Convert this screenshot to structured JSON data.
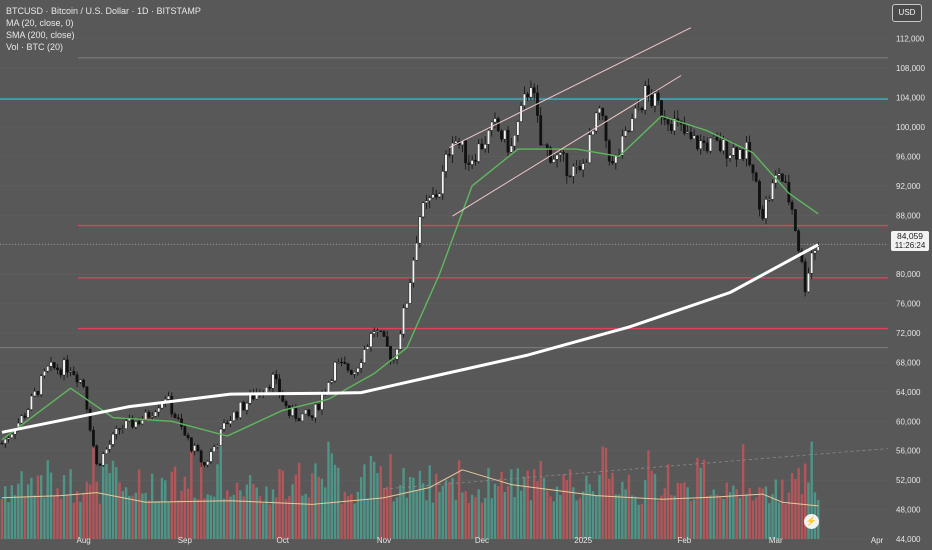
{
  "legend": {
    "symbol": "BTCUSD · Bitcoin / U.S. Dollar · 1D · BITSTAMP",
    "ma": "MA (20, close, 0)",
    "sma": "SMA (200, close)",
    "vol": "Vol · BTC (20)"
  },
  "currency_button": "USD",
  "last_price": {
    "value": "84,059",
    "countdown": "11:26:24"
  },
  "colors": {
    "background": "#585858",
    "sma200": "#ffffff",
    "ma20": "#5fb85f",
    "vol_ma": "#e8c99a",
    "vol_up": "#4e9588",
    "vol_down": "#b3565a",
    "resistance": "#e0405a",
    "cyan_level": "#39b5cc",
    "channel": "#f0c8c8"
  },
  "chart_data": {
    "type": "candlestick",
    "title": "BTCUSD · Bitcoin / U.S. Dollar · 1D · BITSTAMP",
    "y_axis": {
      "range": [
        44000,
        114000
      ],
      "ticks": [
        "112,000",
        "108,000",
        "104,000",
        "100,000",
        "96,000",
        "92,000",
        "88,000",
        "84,000",
        "80,000",
        "76,000",
        "72,000",
        "68,000",
        "64,000",
        "60,000",
        "56,000",
        "52,000",
        "48,000",
        "44,000"
      ]
    },
    "x_axis": {
      "range": [
        "2024-07-07",
        "2025-04-01"
      ],
      "ticks": [
        {
          "label": "Aug",
          "date": "2024-08-01"
        },
        {
          "label": "Sep",
          "date": "2024-09-01"
        },
        {
          "label": "Oct",
          "date": "2024-10-01"
        },
        {
          "label": "Nov",
          "date": "2024-11-01"
        },
        {
          "label": "Dec",
          "date": "2024-12-01"
        },
        {
          "label": "2025",
          "date": "2025-01-01"
        },
        {
          "label": "Feb",
          "date": "2025-02-01"
        },
        {
          "label": "Mar",
          "date": "2025-03-01"
        },
        {
          "label": "Apr",
          "date": "2025-04-01"
        }
      ]
    },
    "close_path": [
      [
        "2024-07-07",
        57000
      ],
      [
        "2024-07-14",
        61000
      ],
      [
        "2024-07-21",
        67000
      ],
      [
        "2024-07-28",
        67500
      ],
      [
        "2024-08-01",
        65000
      ],
      [
        "2024-08-05",
        54000
      ],
      [
        "2024-08-12",
        59000
      ],
      [
        "2024-08-20",
        60500
      ],
      [
        "2024-08-26",
        63500
      ],
      [
        "2024-09-01",
        58000
      ],
      [
        "2024-09-07",
        54000
      ],
      [
        "2024-09-14",
        60000
      ],
      [
        "2024-09-22",
        63500
      ],
      [
        "2024-09-28",
        65800
      ],
      [
        "2024-10-03",
        61000
      ],
      [
        "2024-10-10",
        60500
      ],
      [
        "2024-10-17",
        67500
      ],
      [
        "2024-10-23",
        67000
      ],
      [
        "2024-10-29",
        72500
      ],
      [
        "2024-11-04",
        68500
      ],
      [
        "2024-11-08",
        76500
      ],
      [
        "2024-11-12",
        88000
      ],
      [
        "2024-11-18",
        91500
      ],
      [
        "2024-11-22",
        99000
      ],
      [
        "2024-11-27",
        95500
      ],
      [
        "2024-12-05",
        100000
      ],
      [
        "2024-12-10",
        97000
      ],
      [
        "2024-12-16",
        106500
      ],
      [
        "2024-12-19",
        97500
      ],
      [
        "2024-12-26",
        95000
      ],
      [
        "2024-12-31",
        93500
      ],
      [
        "2025-01-06",
        102000
      ],
      [
        "2025-01-10",
        94500
      ],
      [
        "2025-01-20",
        104500
      ],
      [
        "2025-01-27",
        101500
      ],
      [
        "2025-02-03",
        98000
      ],
      [
        "2025-02-10",
        97500
      ],
      [
        "2025-02-20",
        96500
      ],
      [
        "2025-02-25",
        88500
      ],
      [
        "2025-03-02",
        94000
      ],
      [
        "2025-03-06",
        89000
      ],
      [
        "2025-03-10",
        78500
      ],
      [
        "2025-03-12",
        83000
      ],
      [
        "2025-03-14",
        84059
      ]
    ],
    "ma20_path": [
      [
        "2024-07-07",
        57500
      ],
      [
        "2024-07-28",
        64500
      ],
      [
        "2024-08-10",
        60500
      ],
      [
        "2024-08-28",
        60000
      ],
      [
        "2024-09-14",
        58000
      ],
      [
        "2024-10-01",
        61500
      ],
      [
        "2024-10-15",
        63000
      ],
      [
        "2024-10-29",
        66500
      ],
      [
        "2024-11-08",
        70000
      ],
      [
        "2024-11-18",
        80000
      ],
      [
        "2024-11-28",
        92000
      ],
      [
        "2024-12-12",
        97000
      ],
      [
        "2024-12-30",
        97000
      ],
      [
        "2025-01-12",
        96000
      ],
      [
        "2025-01-25",
        101500
      ],
      [
        "2025-02-08",
        99500
      ],
      [
        "2025-02-22",
        96500
      ],
      [
        "2025-03-05",
        91000
      ],
      [
        "2025-03-14",
        88200
      ]
    ],
    "sma200_path": [
      [
        "2024-07-07",
        58500
      ],
      [
        "2024-08-15",
        62000
      ],
      [
        "2024-09-15",
        63700
      ],
      [
        "2024-10-15",
        63800
      ],
      [
        "2024-10-25",
        63900
      ],
      [
        "2024-11-15",
        66000
      ],
      [
        "2024-12-15",
        69000
      ],
      [
        "2025-01-15",
        72800
      ],
      [
        "2025-02-15",
        77500
      ],
      [
        "2025-03-14",
        84000
      ]
    ],
    "horizontal_levels": [
      {
        "value": 103800,
        "color": "cyan_level"
      },
      {
        "value": 86600,
        "color": "resistance"
      },
      {
        "value": 79500,
        "color": "resistance"
      },
      {
        "value": 72600,
        "color": "resistance"
      },
      {
        "value": 109400,
        "color": "grey"
      },
      {
        "value": 70000,
        "color": "grey"
      }
    ],
    "channel_lines": [
      {
        "from": [
          "2024-11-21",
          97200
        ],
        "to": [
          "2025-02-03",
          113500
        ]
      },
      {
        "from": [
          "2024-11-22",
          87900
        ],
        "to": [
          "2025-01-31",
          107000
        ]
      }
    ],
    "volume_ma_path": [
      [
        "2024-07-07",
        49600
      ],
      [
        "2024-07-25",
        49900
      ],
      [
        "2024-08-05",
        50300
      ],
      [
        "2024-08-20",
        49000
      ],
      [
        "2024-09-15",
        49200
      ],
      [
        "2024-10-10",
        48700
      ],
      [
        "2024-11-01",
        49600
      ],
      [
        "2024-11-15",
        51000
      ],
      [
        "2024-11-25",
        53400
      ],
      [
        "2024-12-10",
        51400
      ],
      [
        "2025-01-05",
        49900
      ],
      [
        "2025-01-25",
        49400
      ],
      [
        "2025-02-10",
        49700
      ],
      [
        "2025-02-25",
        50100
      ],
      [
        "2025-03-03",
        49000
      ],
      [
        "2025-03-14",
        48500
      ]
    ]
  }
}
